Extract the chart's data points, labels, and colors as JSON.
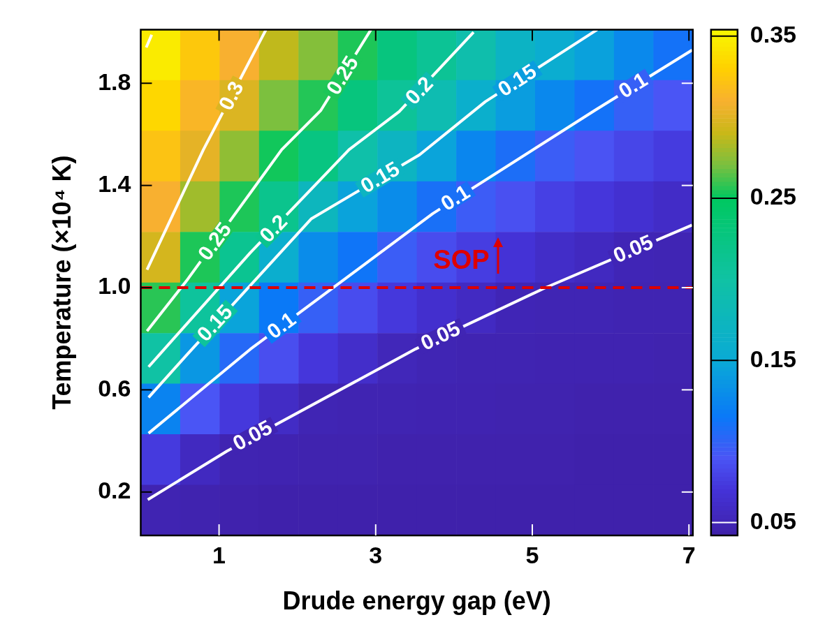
{
  "chart_data": {
    "type": "heatmap",
    "xlabel": "Drude energy gap (eV)",
    "ylabel": "Temperature (×10⁴ K)",
    "xlim": [
      0,
      7.05
    ],
    "ylim": [
      0.03,
      2.01
    ],
    "xticks": [
      1,
      3,
      5,
      7
    ],
    "yticks": [
      0.2,
      0.6,
      {
        "value": 1.0,
        "label": "1.0"
      },
      1.4,
      1.8
    ],
    "clim": [
      0.042,
      0.354
    ],
    "cticks": [
      0.05,
      0.15,
      0.25,
      0.35
    ],
    "cells": [
      [
        0.346,
        0.325,
        0.31,
        0.288,
        0.273,
        0.255,
        0.228,
        0.211,
        0.192,
        0.168,
        0.156,
        0.144,
        0.127,
        0.111
      ],
      [
        0.334,
        0.314,
        0.298,
        0.271,
        0.256,
        0.229,
        0.209,
        0.187,
        0.16,
        0.141,
        0.126,
        0.111,
        0.098,
        0.09
      ],
      [
        0.322,
        0.302,
        0.276,
        0.253,
        0.226,
        0.195,
        0.171,
        0.146,
        0.125,
        0.108,
        0.096,
        0.089,
        0.081,
        0.075
      ],
      [
        0.31,
        0.28,
        0.255,
        0.217,
        0.175,
        0.145,
        0.129,
        0.109,
        0.095,
        0.087,
        0.078,
        0.072,
        0.066,
        0.06
      ],
      [
        0.295,
        0.255,
        0.214,
        0.158,
        0.129,
        0.113,
        0.096,
        0.085,
        0.076,
        0.069,
        0.061,
        0.056,
        0.05,
        0.049
      ],
      [
        0.257,
        0.206,
        0.146,
        0.116,
        0.098,
        0.085,
        0.073,
        0.064,
        0.057,
        0.05,
        0.049,
        0.049,
        0.048,
        0.048
      ],
      [
        0.2,
        0.137,
        0.104,
        0.086,
        0.072,
        0.062,
        0.052,
        0.049,
        0.048,
        0.048,
        0.047,
        0.047,
        0.047,
        0.046
      ],
      [
        0.123,
        0.09,
        0.073,
        0.059,
        0.049,
        0.048,
        0.048,
        0.047,
        0.047,
        0.046,
        0.046,
        0.045,
        0.045,
        0.045
      ],
      [
        0.074,
        0.056,
        0.048,
        0.047,
        0.046,
        0.046,
        0.045,
        0.045,
        0.045,
        0.045,
        0.045,
        0.044,
        0.044,
        0.044
      ],
      [
        0.048,
        0.046,
        0.045,
        0.044,
        0.044,
        0.044,
        0.044,
        0.044,
        0.044,
        0.044,
        0.044,
        0.044,
        0.044,
        0.044
      ]
    ],
    "series": [
      {
        "type": "line",
        "color": "#ffffff",
        "x": [
          0.09,
          1.1,
          3.51,
          5.17,
          7.04
        ],
        "values": [
          0.17,
          0.36,
          0.76,
          1.0,
          1.245
        ]
      },
      {
        "type": "line",
        "color": "#ffffff",
        "x": [
          0.1,
          1.4,
          3.73,
          5.8,
          7.04
        ],
        "values": [
          0.43,
          0.759,
          1.29,
          1.694,
          1.93
        ]
      },
      {
        "type": "line",
        "color": "#ffffff",
        "x": [
          0.1,
          0.6,
          2.18,
          3.56,
          4.4,
          5.83
        ],
        "values": [
          0.57,
          0.741,
          1.27,
          1.52,
          1.728,
          2.01
        ]
      },
      {
        "type": "line",
        "color": "#ffffff",
        "x": [
          0.1,
          1.4,
          2.66,
          3.3,
          4.25
        ],
        "values": [
          0.69,
          1.137,
          1.54,
          1.689,
          2.0
        ]
      },
      {
        "type": "line",
        "color": "#ffffff",
        "x": [
          0.08,
          0.6,
          1.8,
          2.3,
          2.94
        ],
        "values": [
          0.83,
          1.033,
          1.54,
          1.694,
          2.01
        ]
      },
      {
        "type": "line",
        "color": "#ffffff",
        "x": [
          0.08,
          0.8,
          1.6
        ],
        "values": [
          1.07,
          1.54,
          2.01
        ]
      },
      {
        "type": "line",
        "color": "#ffffff",
        "x": [
          0.07,
          0.14
        ],
        "values": [
          1.94,
          1.99
        ]
      }
    ],
    "ref_lines": [
      {
        "axis": "y",
        "value": 1.0,
        "label": "SOP",
        "color": "#dd0000",
        "line_style": "dashed"
      }
    ],
    "annotations": [
      {
        "text": "0.3",
        "x": 1.16,
        "y": 1.75
      },
      {
        "text": "0.25",
        "x": 2.58,
        "y": 1.83
      },
      {
        "text": "0.2",
        "x": 3.56,
        "y": 1.77
      },
      {
        "text": "0.15",
        "x": 4.81,
        "y": 1.81
      },
      {
        "text": "0.1",
        "x": 6.29,
        "y": 1.79
      },
      {
        "text": "0.25",
        "x": 0.95,
        "y": 1.18
      },
      {
        "text": "0.2",
        "x": 1.7,
        "y": 1.23
      },
      {
        "text": "0.15",
        "x": 3.06,
        "y": 1.43
      },
      {
        "text": "0.1",
        "x": 4.02,
        "y": 1.35
      },
      {
        "text": "0.05",
        "x": 6.29,
        "y": 1.15
      },
      {
        "text": "0.15",
        "x": 0.95,
        "y": 0.86
      },
      {
        "text": "0.1",
        "x": 1.8,
        "y": 0.85
      },
      {
        "text": "0.05",
        "x": 3.83,
        "y": 0.81
      },
      {
        "text": "0.05",
        "x": 1.43,
        "y": 0.42
      }
    ]
  }
}
